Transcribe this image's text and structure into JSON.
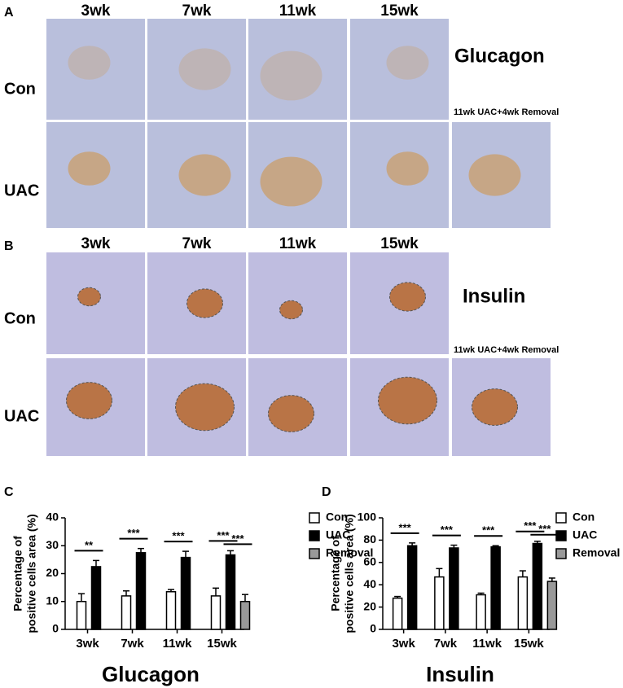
{
  "panels": {
    "A": {
      "letter": "A",
      "columns": [
        "3wk",
        "7wk",
        "11wk",
        "15wk"
      ],
      "rows": [
        "Con",
        "UAC"
      ],
      "stain": "Glucagon",
      "extra": "11wk UAC+4wk Removal"
    },
    "B": {
      "letter": "B",
      "columns": [
        "3wk",
        "7wk",
        "11wk",
        "15wk"
      ],
      "rows": [
        "Con",
        "UAC"
      ],
      "stain": "Insulin",
      "extra": "11wk UAC+4wk Removal"
    }
  },
  "chart_data": [
    {
      "type": "bar",
      "letter": "C",
      "title": "Glucagon",
      "ylabel": [
        "Percentage of",
        "positive cells area (%)"
      ],
      "categories": [
        "3wk",
        "7wk",
        "11wk",
        "15wk"
      ],
      "series": [
        {
          "name": "Con",
          "color": "#ffffff",
          "values": [
            10,
            12,
            13.5,
            12
          ],
          "errors": [
            2.8,
            1.8,
            0.8,
            2.8
          ]
        },
        {
          "name": "UAC",
          "color": "#000000",
          "values": [
            22.5,
            27.5,
            25.8,
            26.7
          ],
          "errors": [
            2.2,
            1.5,
            2.2,
            1.5
          ]
        },
        {
          "name": "Removal",
          "color": "#999999",
          "values": [
            null,
            null,
            null,
            10
          ],
          "errors": [
            null,
            null,
            null,
            2.5
          ]
        }
      ],
      "ylim": [
        0,
        40
      ],
      "yticks": [
        0,
        10,
        20,
        30,
        40
      ],
      "significance": [
        {
          "category": "3wk",
          "pair": [
            "Con",
            "UAC"
          ],
          "label": "**"
        },
        {
          "category": "7wk",
          "pair": [
            "Con",
            "UAC"
          ],
          "label": "***"
        },
        {
          "category": "11wk",
          "pair": [
            "Con",
            "UAC"
          ],
          "label": "***"
        },
        {
          "category": "15wk",
          "pair": [
            "Con",
            "UAC"
          ],
          "label": "***"
        },
        {
          "category": "15wk",
          "pair": [
            "UAC",
            "Removal"
          ],
          "label": "***"
        }
      ]
    },
    {
      "type": "bar",
      "letter": "D",
      "title": "Insulin",
      "ylabel": [
        "Percentage of",
        "positive cells area (%)"
      ],
      "categories": [
        "3wk",
        "7wk",
        "11wk",
        "15wk"
      ],
      "series": [
        {
          "name": "Con",
          "color": "#ffffff",
          "values": [
            28,
            47,
            31,
            47
          ],
          "errors": [
            1.5,
            7.5,
            1.5,
            5.5
          ]
        },
        {
          "name": "UAC",
          "color": "#000000",
          "values": [
            75,
            73,
            74,
            77
          ],
          "errors": [
            2.5,
            2.5,
            1,
            2
          ]
        },
        {
          "name": "Removal",
          "color": "#999999",
          "values": [
            null,
            null,
            null,
            43
          ],
          "errors": [
            null,
            null,
            null,
            3
          ]
        }
      ],
      "ylim": [
        0,
        100
      ],
      "yticks": [
        0,
        20,
        40,
        60,
        80,
        100
      ],
      "significance": [
        {
          "category": "3wk",
          "pair": [
            "Con",
            "UAC"
          ],
          "label": "***"
        },
        {
          "category": "7wk",
          "pair": [
            "Con",
            "UAC"
          ],
          "label": "***"
        },
        {
          "category": "11wk",
          "pair": [
            "Con",
            "UAC"
          ],
          "label": "***"
        },
        {
          "category": "15wk",
          "pair": [
            "Con",
            "UAC"
          ],
          "label": "***"
        },
        {
          "category": "15wk",
          "pair": [
            "UAC",
            "Removal"
          ],
          "label": "***"
        }
      ]
    }
  ]
}
